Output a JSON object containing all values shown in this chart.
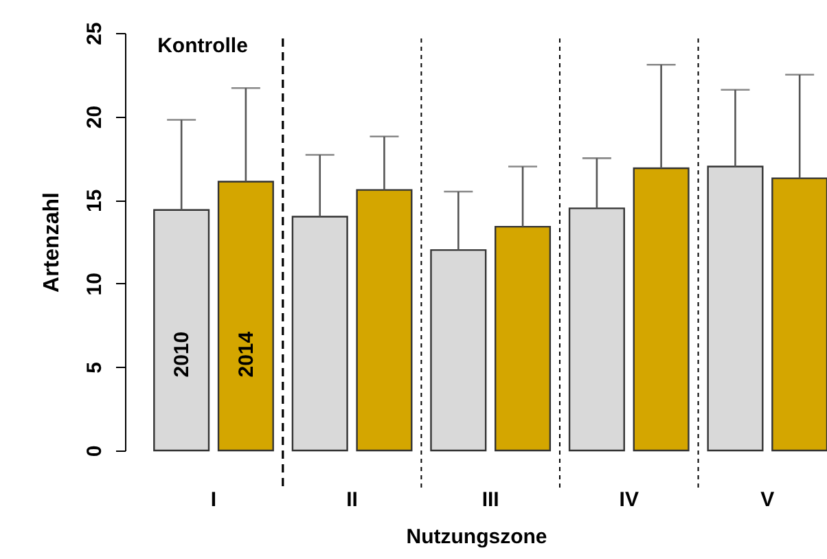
{
  "chart_data": {
    "type": "bar",
    "xlabel": "Nutzungszone",
    "ylabel": "Artenzahl",
    "categories": [
      "I",
      "II",
      "III",
      "IV",
      "V"
    ],
    "series": [
      {
        "name": "2010",
        "color": "#d9d9d9",
        "values": [
          14.4,
          14.0,
          12.0,
          14.5,
          17.0
        ],
        "errors": [
          [
            14.4,
            19.8
          ],
          [
            14.0,
            17.7
          ],
          [
            12.0,
            15.5
          ],
          [
            14.5,
            17.5
          ],
          [
            17.0,
            21.6
          ]
        ]
      },
      {
        "name": "2014",
        "color": "#d4a600",
        "values": [
          16.1,
          15.6,
          13.4,
          16.9,
          16.3
        ],
        "errors": [
          [
            16.1,
            21.7
          ],
          [
            15.6,
            18.8
          ],
          [
            13.4,
            17.0
          ],
          [
            16.9,
            23.1
          ],
          [
            16.3,
            22.5
          ]
        ]
      }
    ],
    "ylim": [
      0,
      25
    ],
    "yticks": [
      0,
      5,
      10,
      15,
      20,
      25
    ],
    "annotations": [
      "Kontrolle"
    ],
    "ref_lines": [
      {
        "axis": "x",
        "value": "I",
        "line_style": "dashed"
      }
    ]
  }
}
